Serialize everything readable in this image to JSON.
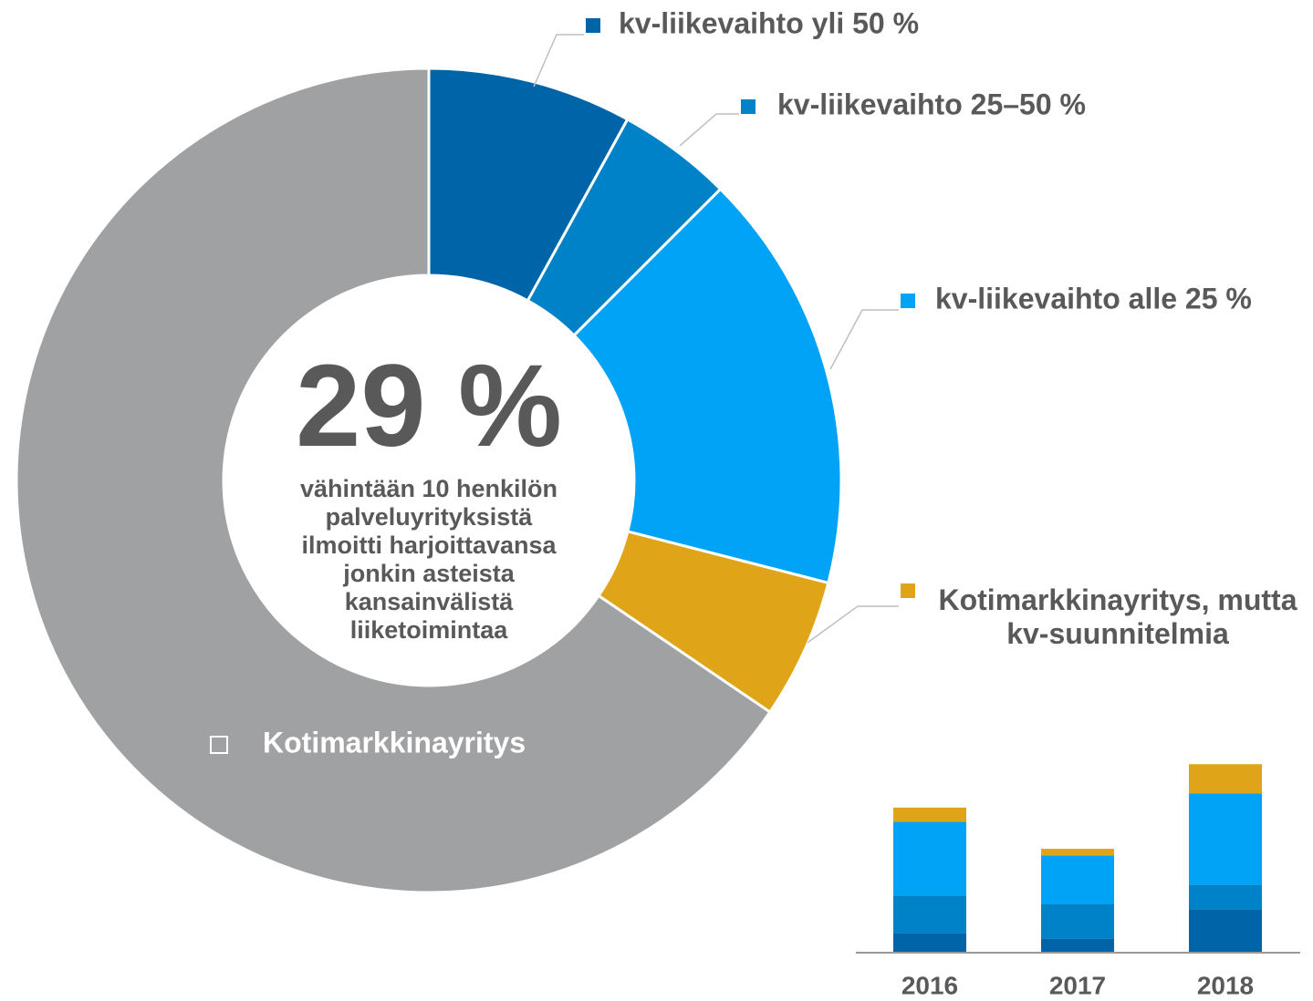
{
  "chart_data": [
    {
      "type": "pie",
      "categories": [
        "kv-liikevaihto yli 50 %",
        "kv-liikevaihto 25–50 %",
        "kv-liikevaihto alle 25 %",
        "Kotimarkkinayritys, mutta kv-suunnitelmia",
        "Kotimarkkinayritys"
      ],
      "values": [
        8,
        4.5,
        16.5,
        5.5,
        65.5
      ],
      "colors": [
        "#0065a8",
        "#0082c9",
        "#00a3f5",
        "#e0a419",
        "#a0a1a3"
      ],
      "center_label": "29 %",
      "center_text": [
        "vähintään 10 henkilön",
        "palveluyrityksistä",
        "ilmoitti harjoittavansa",
        "jonkin asteista",
        "kansainvälistä",
        "liiketoimintaa"
      ]
    },
    {
      "type": "bar",
      "stacked": true,
      "categories": [
        "2016",
        "2017",
        "2018"
      ],
      "ylim": [
        0,
        36
      ],
      "series": [
        {
          "color": "#0065a8",
          "values": [
            3.6,
            2.6,
            7.9
          ]
        },
        {
          "color": "#0082c9",
          "values": [
            6.8,
            6.3,
            4.5
          ]
        },
        {
          "color": "#00a3f5",
          "values": [
            13.4,
            8.8,
            16.6
          ]
        },
        {
          "color": "#e0a419",
          "values": [
            2.6,
            1.2,
            5.3
          ]
        }
      ]
    }
  ]
}
